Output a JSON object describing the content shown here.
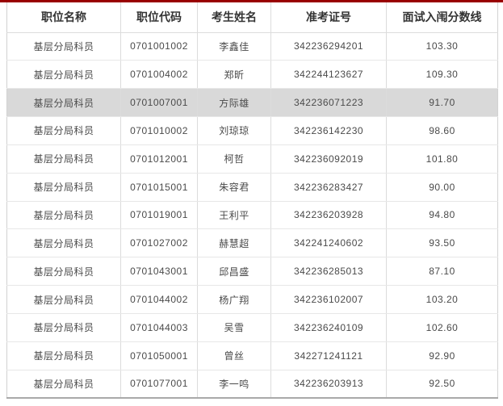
{
  "colors": {
    "accent_red": "#990000",
    "header_text": "#333333",
    "cell_text": "#4a4a4a",
    "row_border": "#e7e7e7",
    "column_border": "#dcdcdc",
    "outer_border": "#d2d2d2",
    "bottom_border": "#a9a9a9",
    "highlight_row_bg": "#d9d9d9",
    "row_bg": "#ffffff"
  },
  "table": {
    "columns": [
      "职位名称",
      "职位代码",
      "考生姓名",
      "准考证号",
      "面试入闱分数线"
    ],
    "highlighted_row_index": 2,
    "rows": [
      [
        "基层分局科员",
        "0701001002",
        "李鑫佳",
        "342236294201",
        "103.30"
      ],
      [
        "基层分局科员",
        "0701004002",
        "郑昕",
        "342244123627",
        "109.30"
      ],
      [
        "基层分局科员",
        "0701007001",
        "方际雄",
        "342236071223",
        "91.70"
      ],
      [
        "基层分局科员",
        "0701010002",
        "刘琼琼",
        "342236142230",
        "98.60"
      ],
      [
        "基层分局科员",
        "0701012001",
        "柯哲",
        "342236092019",
        "101.80"
      ],
      [
        "基层分局科员",
        "0701015001",
        "朱容君",
        "342236283427",
        "90.00"
      ],
      [
        "基层分局科员",
        "0701019001",
        "王利平",
        "342236203928",
        "94.80"
      ],
      [
        "基层分局科员",
        "0701027002",
        "赫慧超",
        "342241240602",
        "93.50"
      ],
      [
        "基层分局科员",
        "0701043001",
        "邱昌盛",
        "342236285013",
        "87.10"
      ],
      [
        "基层分局科员",
        "0701044002",
        "杨广翔",
        "342236102007",
        "103.20"
      ],
      [
        "基层分局科员",
        "0701044003",
        "吴雪",
        "342236240109",
        "102.60"
      ],
      [
        "基层分局科员",
        "0701050001",
        "曾丝",
        "342271241121",
        "92.90"
      ],
      [
        "基层分局科员",
        "0701077001",
        "李一鸣",
        "342236203913",
        "92.50"
      ]
    ]
  }
}
